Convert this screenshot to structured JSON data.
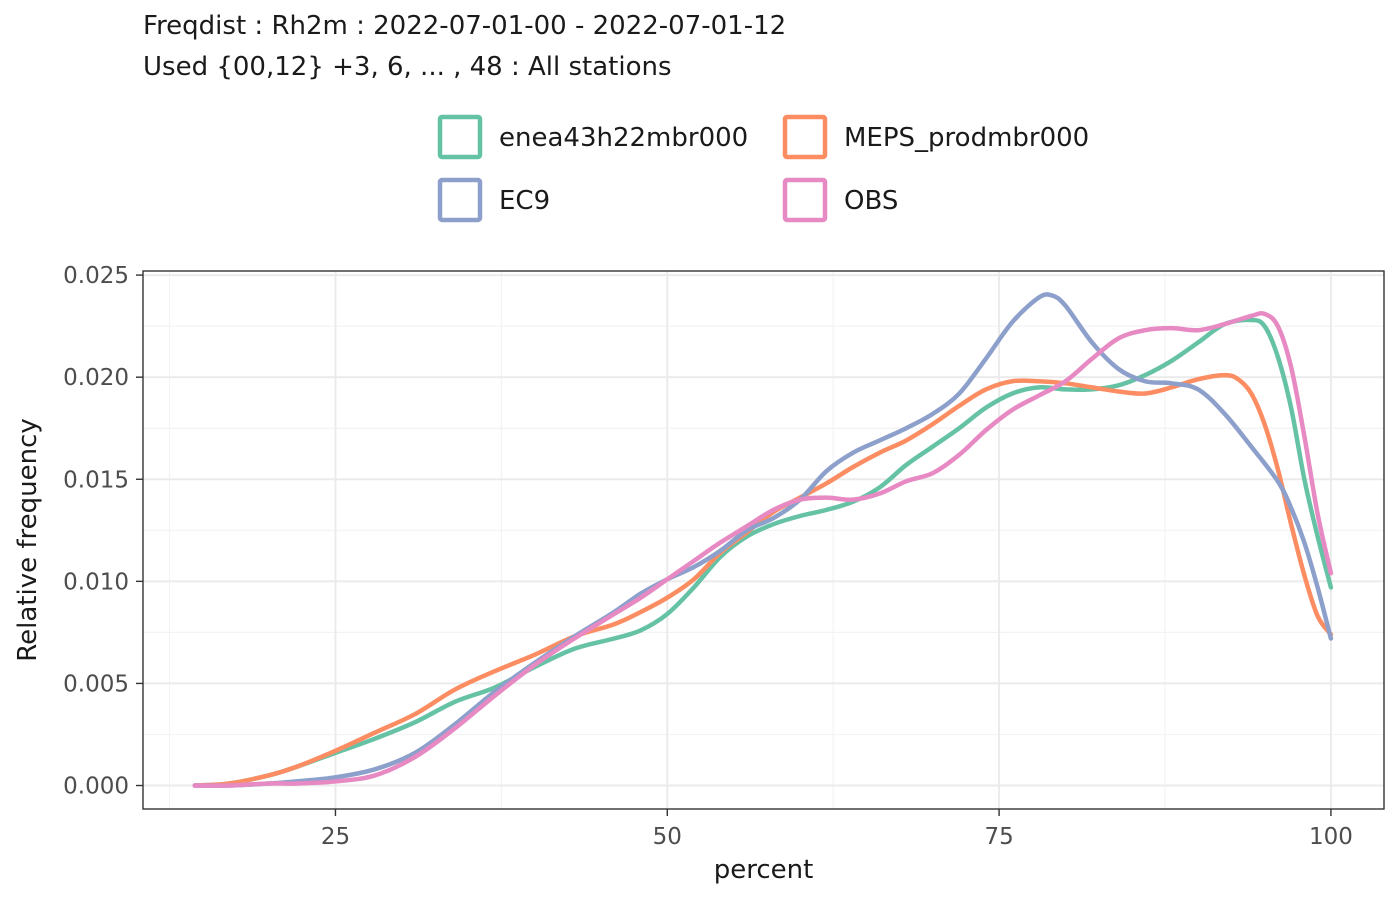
{
  "chart_data": {
    "type": "line",
    "title": "Freqdist : Rh2m : 2022-07-01-00 - 2022-07-01-12",
    "subtitle": "Used {00,12} +3, 6, ... , 48 : All stations",
    "xlabel": "percent",
    "ylabel": "Relative frequency",
    "xlim": [
      10.5,
      104
    ],
    "ylim": [
      -0.00115,
      0.0252
    ],
    "x_ticks": [
      25,
      50,
      75,
      100
    ],
    "x_tick_labels": [
      "25",
      "50",
      "75",
      "100"
    ],
    "y_ticks": [
      0,
      0.005,
      0.01,
      0.015,
      0.02,
      0.025
    ],
    "y_tick_labels": [
      "0.000",
      "0.005",
      "0.010",
      "0.015",
      "0.020",
      "0.025"
    ],
    "grid": true,
    "legend_position": "top",
    "series": [
      {
        "name": "enea43h22mbr000",
        "color": "#66C2A5",
        "points": [
          [
            14.4,
            0
          ],
          [
            17,
            0.0001
          ],
          [
            20,
            0.0005
          ],
          [
            22,
            0.0009
          ],
          [
            25,
            0.0016
          ],
          [
            28,
            0.0023
          ],
          [
            31,
            0.0031
          ],
          [
            34,
            0.0041
          ],
          [
            37,
            0.0048
          ],
          [
            40,
            0.0058
          ],
          [
            43,
            0.0067
          ],
          [
            46,
            0.0072
          ],
          [
            48,
            0.0076
          ],
          [
            50,
            0.0084
          ],
          [
            52,
            0.0097
          ],
          [
            54,
            0.0112
          ],
          [
            56,
            0.0122
          ],
          [
            58,
            0.0128
          ],
          [
            60,
            0.0132
          ],
          [
            62,
            0.0135
          ],
          [
            64,
            0.0139
          ],
          [
            66,
            0.0146
          ],
          [
            68,
            0.0157
          ],
          [
            70,
            0.0166
          ],
          [
            72,
            0.0175
          ],
          [
            74,
            0.0185
          ],
          [
            76,
            0.0192
          ],
          [
            78,
            0.0195
          ],
          [
            80,
            0.0194
          ],
          [
            82,
            0.0194
          ],
          [
            84,
            0.0196
          ],
          [
            86,
            0.0201
          ],
          [
            88,
            0.0208
          ],
          [
            90,
            0.0217
          ],
          [
            92,
            0.0226
          ],
          [
            94,
            0.0228
          ],
          [
            95,
            0.0225
          ],
          [
            96,
            0.021
          ],
          [
            97,
            0.0185
          ],
          [
            98,
            0.015
          ],
          [
            99,
            0.0122
          ],
          [
            100,
            0.0097
          ]
        ]
      },
      {
        "name": "MEPS_prodmbr000",
        "color": "#FC8D62",
        "points": [
          [
            14.4,
            0
          ],
          [
            17,
            0.0001
          ],
          [
            20,
            0.0005
          ],
          [
            22,
            0.0009
          ],
          [
            25,
            0.0017
          ],
          [
            28,
            0.0026
          ],
          [
            31,
            0.0035
          ],
          [
            34,
            0.0047
          ],
          [
            37,
            0.0056
          ],
          [
            40,
            0.0064
          ],
          [
            43,
            0.0073
          ],
          [
            46,
            0.0079
          ],
          [
            48,
            0.0085
          ],
          [
            50,
            0.0092
          ],
          [
            52,
            0.0101
          ],
          [
            54,
            0.0114
          ],
          [
            56,
            0.0124
          ],
          [
            58,
            0.0134
          ],
          [
            60,
            0.0141
          ],
          [
            62,
            0.0148
          ],
          [
            64,
            0.0156
          ],
          [
            66,
            0.0163
          ],
          [
            68,
            0.0169
          ],
          [
            70,
            0.0177
          ],
          [
            72,
            0.0186
          ],
          [
            74,
            0.0194
          ],
          [
            76,
            0.0198
          ],
          [
            78,
            0.0198
          ],
          [
            80,
            0.0197
          ],
          [
            82,
            0.0195
          ],
          [
            84,
            0.0193
          ],
          [
            86,
            0.0192
          ],
          [
            88,
            0.0195
          ],
          [
            90,
            0.0199
          ],
          [
            92,
            0.0201
          ],
          [
            93,
            0.0199
          ],
          [
            94,
            0.0192
          ],
          [
            95,
            0.0177
          ],
          [
            96,
            0.0155
          ],
          [
            97,
            0.0128
          ],
          [
            98,
            0.0103
          ],
          [
            99,
            0.0083
          ],
          [
            100,
            0.0074
          ]
        ]
      },
      {
        "name": "EC9",
        "color": "#8DA0CB",
        "points": [
          [
            14.4,
            0
          ],
          [
            17,
            0
          ],
          [
            20,
            0.0001
          ],
          [
            22,
            0.0002
          ],
          [
            25,
            0.0004
          ],
          [
            28,
            0.0008
          ],
          [
            31,
            0.0016
          ],
          [
            34,
            0.003
          ],
          [
            37,
            0.0046
          ],
          [
            40,
            0.006
          ],
          [
            43,
            0.0073
          ],
          [
            46,
            0.0085
          ],
          [
            48,
            0.0094
          ],
          [
            50,
            0.0101
          ],
          [
            52,
            0.0107
          ],
          [
            54,
            0.0115
          ],
          [
            56,
            0.0125
          ],
          [
            58,
            0.0131
          ],
          [
            60,
            0.014
          ],
          [
            62,
            0.0154
          ],
          [
            64,
            0.0163
          ],
          [
            66,
            0.0169
          ],
          [
            68,
            0.0175
          ],
          [
            70,
            0.0182
          ],
          [
            72,
            0.0192
          ],
          [
            74,
            0.0209
          ],
          [
            76,
            0.0227
          ],
          [
            78,
            0.0239
          ],
          [
            79,
            0.024
          ],
          [
            80,
            0.0235
          ],
          [
            82,
            0.0217
          ],
          [
            84,
            0.0204
          ],
          [
            86,
            0.0198
          ],
          [
            88,
            0.0197
          ],
          [
            90,
            0.0194
          ],
          [
            92,
            0.0182
          ],
          [
            94,
            0.0166
          ],
          [
            96,
            0.0149
          ],
          [
            97,
            0.0136
          ],
          [
            98,
            0.0119
          ],
          [
            99,
            0.0097
          ],
          [
            100,
            0.0072
          ]
        ]
      },
      {
        "name": "OBS",
        "color": "#E78AC3",
        "points": [
          [
            14.4,
            0
          ],
          [
            17,
            0
          ],
          [
            20,
            0.0001
          ],
          [
            22,
            0.0001
          ],
          [
            25,
            0.0002
          ],
          [
            28,
            0.0005
          ],
          [
            31,
            0.0014
          ],
          [
            34,
            0.0028
          ],
          [
            37,
            0.0044
          ],
          [
            40,
            0.0059
          ],
          [
            43,
            0.0072
          ],
          [
            46,
            0.0084
          ],
          [
            48,
            0.0092
          ],
          [
            50,
            0.0101
          ],
          [
            52,
            0.011
          ],
          [
            54,
            0.0119
          ],
          [
            56,
            0.0127
          ],
          [
            58,
            0.0135
          ],
          [
            60,
            0.014
          ],
          [
            62,
            0.0141
          ],
          [
            64,
            0.014
          ],
          [
            66,
            0.0143
          ],
          [
            68,
            0.0149
          ],
          [
            70,
            0.0153
          ],
          [
            72,
            0.0162
          ],
          [
            74,
            0.0174
          ],
          [
            76,
            0.0184
          ],
          [
            78,
            0.0191
          ],
          [
            80,
            0.0198
          ],
          [
            82,
            0.0209
          ],
          [
            84,
            0.0219
          ],
          [
            86,
            0.0223
          ],
          [
            88,
            0.0224
          ],
          [
            90,
            0.0223
          ],
          [
            92,
            0.0226
          ],
          [
            94,
            0.023
          ],
          [
            95,
            0.0231
          ],
          [
            96,
            0.0225
          ],
          [
            97,
            0.0205
          ],
          [
            98,
            0.0171
          ],
          [
            99,
            0.0133
          ],
          [
            100,
            0.0104
          ]
        ]
      }
    ]
  }
}
